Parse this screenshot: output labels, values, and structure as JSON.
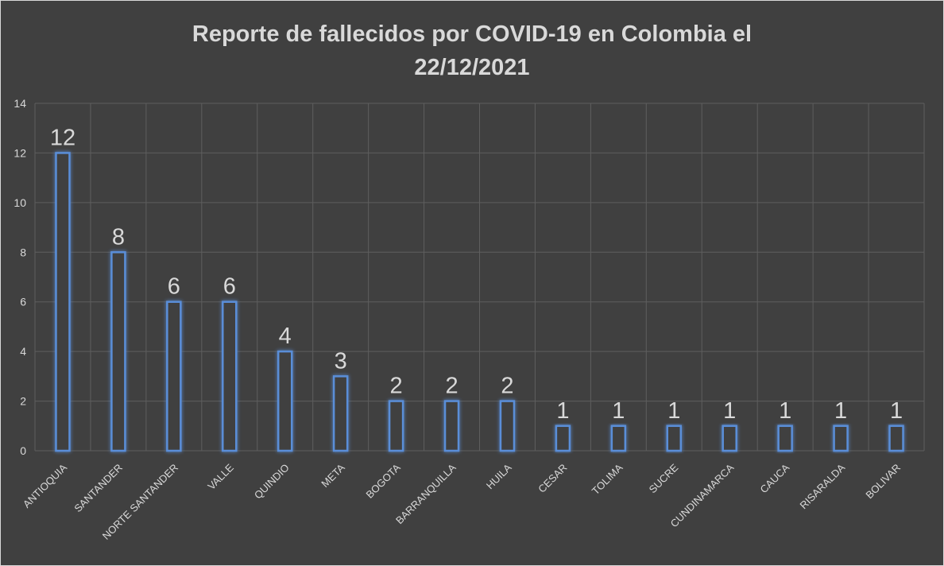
{
  "chart_data": {
    "type": "bar",
    "title_line1": "Reporte de fallecidos por COVID-19 en Colombia el",
    "title_line2": "22/12/2021",
    "xlabel": "",
    "ylabel": "",
    "ylim": [
      0,
      14
    ],
    "y_ticks": [
      0,
      2,
      4,
      6,
      8,
      10,
      12,
      14
    ],
    "categories": [
      "ANTIOQUIA",
      "SANTANDER",
      "NORTE SANTANDER",
      "VALLE",
      "QUINDIO",
      "META",
      "BOGOTA",
      "BARRANQUILLA",
      "HUILA",
      "CESAR",
      "TOLIMA",
      "SUCRE",
      "CUNDINAMARCA",
      "CAUCA",
      "RISARALDA",
      "BOLIVAR"
    ],
    "values": [
      12,
      8,
      6,
      6,
      4,
      3,
      2,
      2,
      2,
      1,
      1,
      1,
      1,
      1,
      1,
      1
    ],
    "grid": true,
    "legend": "none",
    "colors": {
      "background": "#404040",
      "bar_outline": "#5a8ed8",
      "text": "#d9d9d9",
      "grid": "#5e5e5e"
    }
  }
}
